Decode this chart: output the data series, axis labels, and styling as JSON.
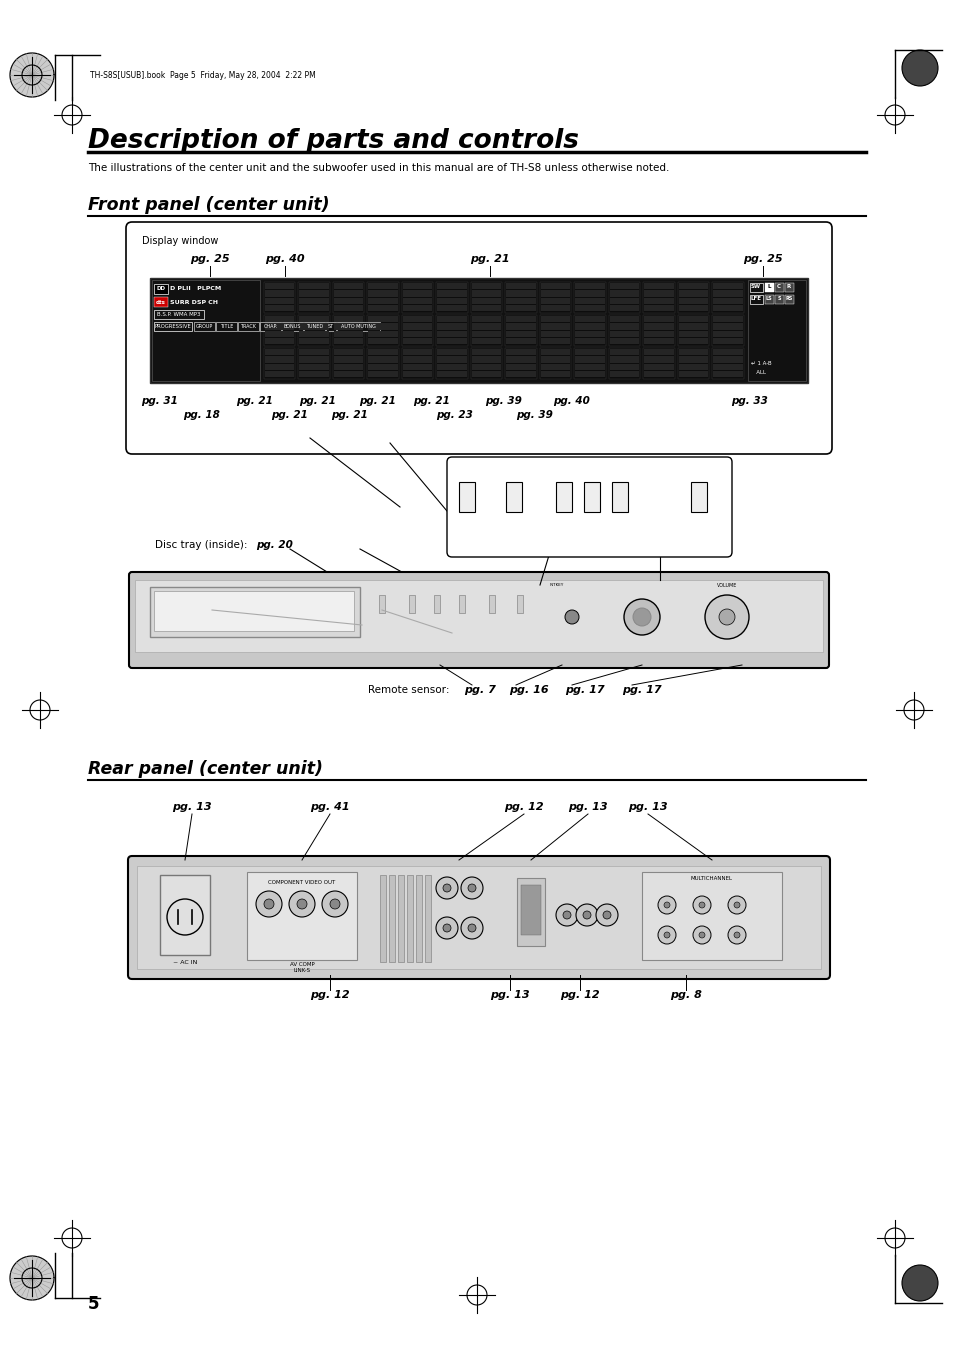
{
  "page_bg": "#ffffff",
  "text_color": "#000000",
  "title_main": "Description of parts and controls",
  "subtitle": "The illustrations of the center unit and the subwoofer used in this manual are of TH-S8 unless otherwise noted.",
  "section1_title": "Front panel (center unit)",
  "section2_title": "Rear panel (center unit)",
  "header_text": "TH-S8S[USUB].book  Page 5  Friday, May 28, 2004  2:22 PM",
  "page_number": "5"
}
